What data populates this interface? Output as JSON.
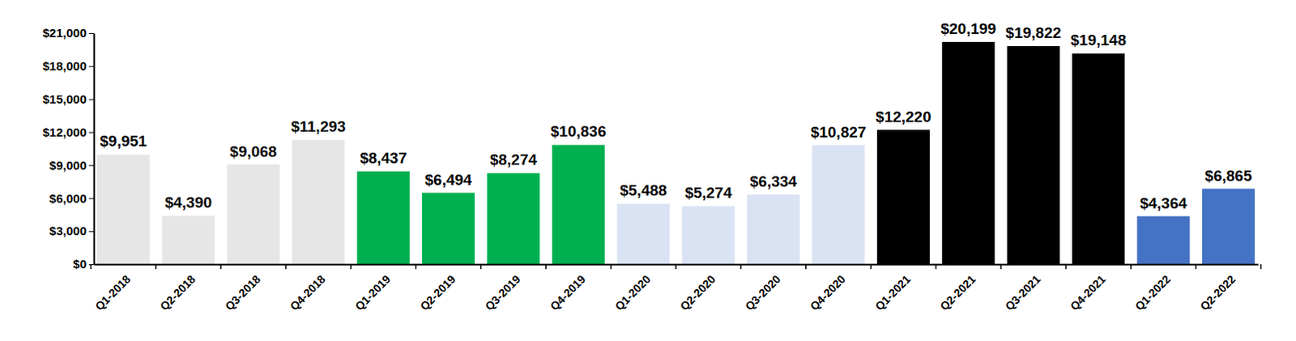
{
  "chart_data": {
    "type": "bar",
    "categories": [
      "Q1-2018",
      "Q2-2018",
      "Q3-2018",
      "Q4-2018",
      "Q1-2019",
      "Q2-2019",
      "Q3-2019",
      "Q4-2019",
      "Q1-2020",
      "Q2-2020",
      "Q3-2020",
      "Q4-2020",
      "Q1-2021",
      "Q2-2021",
      "Q3-2021",
      "Q4-2021",
      "Q1-2022",
      "Q2-2022"
    ],
    "values": [
      9951,
      4390,
      9068,
      11293,
      8437,
      6494,
      8274,
      10836,
      5488,
      5274,
      6334,
      10827,
      12220,
      20199,
      19822,
      19148,
      4364,
      6865
    ],
    "value_labels": [
      "$9,951",
      "$4,390",
      "$9,068",
      "$11,293",
      "$8,437",
      "$6,494",
      "$8,274",
      "$10,836",
      "$5,488",
      "$5,274",
      "$6,334",
      "$10,827",
      "$12,220",
      "$20,199",
      "$19,822",
      "$19,148",
      "$4,364",
      "$6,865"
    ],
    "colors": [
      "#e6e6e6",
      "#e6e6e6",
      "#e6e6e6",
      "#e6e6e6",
      "#00b050",
      "#00b050",
      "#00b050",
      "#00b050",
      "#dae3f3",
      "#dae3f3",
      "#dae3f3",
      "#dae3f3",
      "#000000",
      "#000000",
      "#000000",
      "#000000",
      "#4472c4",
      "#4472c4"
    ],
    "ylim": [
      0,
      21000
    ],
    "yticks": [
      {
        "value": 0,
        "label": "$0"
      },
      {
        "value": 3000,
        "label": "$3,000"
      },
      {
        "value": 6000,
        "label": "$6,000"
      },
      {
        "value": 9000,
        "label": "$9,000"
      },
      {
        "value": 12000,
        "label": "$12,000"
      },
      {
        "value": 15000,
        "label": "$15,000"
      },
      {
        "value": 18000,
        "label": "$18,000"
      },
      {
        "value": 21000,
        "label": "$21,000"
      }
    ],
    "grid": false,
    "data_labels": true
  }
}
